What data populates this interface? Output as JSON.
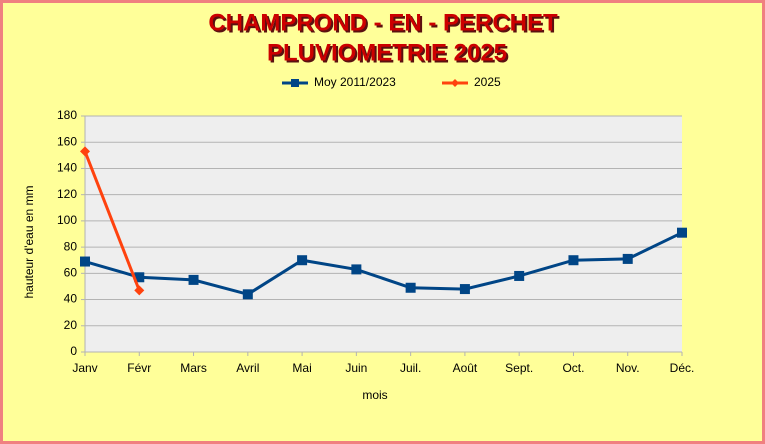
{
  "chart_data": {
    "type": "line",
    "title": "CHAMPROND - EN - PERCHET",
    "subtitle": "PLUVIOMETRIE 2025",
    "y_label": "hauteur d'eau en mm",
    "x_label": "mois",
    "categories": [
      "Janv",
      "Févr",
      "Mars",
      "Avril",
      "Mai",
      "Juin",
      "Juil.",
      "Août",
      "Sept.",
      "Oct.",
      "Nov.",
      "Déc."
    ],
    "series": [
      {
        "name": "Moy 2011/2023",
        "color": "#004586",
        "marker": "square",
        "values": [
          69,
          57,
          55,
          44,
          70,
          63,
          49,
          48,
          58,
          70,
          71,
          91
        ]
      },
      {
        "name": "2025",
        "color": "#ff420e",
        "marker": "diamond",
        "values": [
          153,
          47,
          null,
          null,
          null,
          null,
          null,
          null,
          null,
          null,
          null,
          null
        ]
      }
    ],
    "ylim": [
      0,
      180
    ],
    "yticks": [
      0,
      20,
      40,
      60,
      80,
      100,
      120,
      140,
      160,
      180
    ],
    "grid": true
  }
}
